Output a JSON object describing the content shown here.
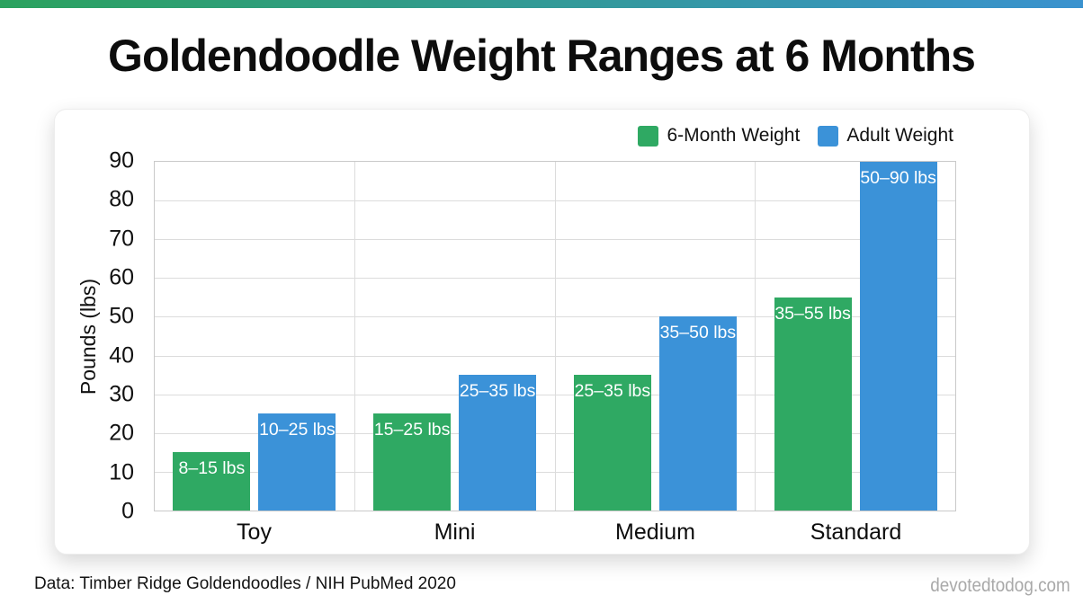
{
  "page": {
    "title": "Goldendoodle Weight Ranges at 6 Months",
    "footer_left": "Data: Timber Ridge Goldendoodles / NIH PubMed 2020",
    "footer_right": "devotedtodog.com"
  },
  "colors": {
    "accent_green": "#2fa963",
    "accent_blue": "#3b92d8",
    "topbar_gradient_left": "#2ba25e",
    "topbar_gradient_right": "#3a92cf",
    "gridline": "#dcdcdc",
    "footer_gray": "#a9a9a9"
  },
  "legend": [
    {
      "label": "6-Month Weight",
      "color": "#2fa963"
    },
    {
      "label": "Adult Weight",
      "color": "#3b92d8"
    }
  ],
  "chart_data": {
    "type": "bar",
    "title": "Goldendoodle Weight Ranges at 6 Months",
    "categories": [
      "Toy",
      "Mini",
      "Medium",
      "Standard"
    ],
    "series": [
      {
        "name": "6-Month Weight",
        "color": "#2fa963",
        "values": [
          15,
          25,
          35,
          55
        ],
        "labels": [
          "8–15 lbs",
          "15–25 lbs",
          "25–35 lbs",
          "35–55 lbs"
        ]
      },
      {
        "name": "Adult Weight",
        "color": "#3b92d8",
        "values": [
          25,
          35,
          50,
          90
        ],
        "labels": [
          "10–25 lbs",
          "25–35 lbs",
          "35–50 lbs",
          "50–90 lbs"
        ]
      }
    ],
    "xlabel": "",
    "ylabel": "Pounds (lbs)",
    "ylim": [
      0,
      90
    ],
    "ytick_step": 10,
    "grid": true,
    "legend_position": "top-right"
  }
}
